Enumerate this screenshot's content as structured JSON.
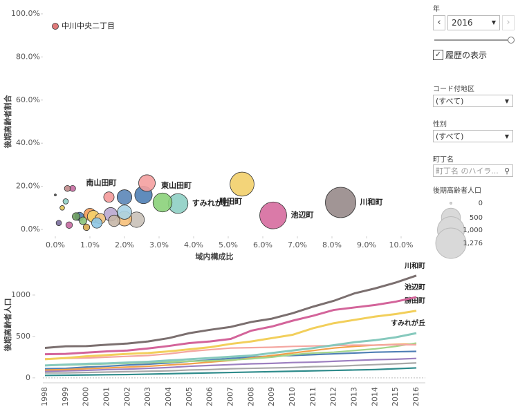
{
  "chart_data": [
    {
      "type": "scatter",
      "highlight": "中川中央二丁目",
      "highlight_color": "#e07a7a",
      "x_label": "域内構成比",
      "y_label": "後期高齢者割合",
      "xlim": [
        -0.36,
        10.7
      ],
      "ylim": [
        -3.2,
        103.2
      ],
      "xticks": [
        {
          "value": 0,
          "label": "0.0%"
        },
        {
          "value": 1,
          "label": "1.0%"
        },
        {
          "value": 2,
          "label": "2.0%"
        },
        {
          "value": 3,
          "label": "3.0%"
        },
        {
          "value": 4,
          "label": "4.0%"
        },
        {
          "value": 5,
          "label": "5.0%"
        },
        {
          "value": 6,
          "label": "6.0%"
        },
        {
          "value": 7,
          "label": "7.0%"
        },
        {
          "value": 8,
          "label": "8.0%"
        },
        {
          "value": 9,
          "label": "9.0%"
        },
        {
          "value": 10,
          "label": "10.0%"
        }
      ],
      "yticks": [
        {
          "value": 0,
          "label": "0.0%"
        },
        {
          "value": 20,
          "label": "20.0%"
        },
        {
          "value": 40,
          "label": "40.0%"
        },
        {
          "value": 60,
          "label": "60.0%"
        },
        {
          "value": 80,
          "label": "80.0%"
        },
        {
          "value": 100,
          "label": "100.0%"
        }
      ],
      "grid": false,
      "points": {
        "x": [
          8.25,
          6.3,
          5.4,
          3.55,
          3.1,
          2.65,
          2.55,
          2.0,
          2.0,
          2.0,
          2.35,
          1.55,
          1.6,
          1.3,
          1.2,
          1.0,
          0.8,
          0.6,
          0.5,
          0.35,
          0.3,
          0.2,
          0.1,
          0.4,
          0.9,
          1.1,
          0.7,
          1.7,
          0.0
        ],
        "y": [
          12.5,
          6.5,
          21,
          12,
          12.5,
          21.5,
          16,
          15,
          8,
          5,
          4.5,
          15,
          7,
          5,
          3,
          7,
          4,
          6,
          19,
          19,
          13,
          10,
          3,
          2,
          1,
          6,
          6,
          4,
          16
        ],
        "sizes": [
          1276,
          1000,
          800,
          540,
          500,
          380,
          420,
          300,
          280,
          300,
          330,
          150,
          250,
          150,
          150,
          200,
          80,
          80,
          50,
          50,
          40,
          30,
          40,
          60,
          60,
          200,
          100,
          180,
          0
        ],
        "colors": [
          "#978a8a",
          "#d66b9e",
          "#f2cf6a",
          "#8ecfc4",
          "#8bd17a",
          "#f4a0a0",
          "#4f7fb5",
          "#5b86b8",
          "#a9d3e6",
          "#f6c07a",
          "#c9c1b8",
          "#f49a9a",
          "#b9a7cf",
          "#f1c27d",
          "#8ec6e4",
          "#f29b58",
          "#8ac27a",
          "#6fa060",
          "#c66aa1",
          "#c08a8a",
          "#8ecfc4",
          "#e2c65a",
          "#7b6f9f",
          "#c66aa1",
          "#d8a94d",
          "#f4d16a",
          "#4f7fb5",
          "#c6b7a8",
          "#555555"
        ],
        "labels": [
          "川和町",
          "池辺町",
          "勝田町",
          "すみれが丘",
          "東山田町",
          "南山田町",
          null,
          null,
          null,
          null,
          null,
          null,
          null,
          null,
          null,
          null,
          null,
          null,
          null,
          null,
          null,
          null,
          null,
          null,
          null,
          null,
          null,
          null,
          null
        ]
      },
      "size_legend": {
        "title": "後期高齢者人口",
        "values": [
          0,
          500,
          {
            "value": 1000,
            "label": "1,000"
          },
          {
            "value": 1276,
            "label": "1,276"
          }
        ]
      }
    },
    {
      "type": "line",
      "y_label": "後期高齢者人口",
      "categories": [
        "1998",
        "1999",
        "2000",
        "2001",
        "2002",
        "2003",
        "2004",
        "2005",
        "2006",
        "2007",
        "2008",
        "2009",
        "2010",
        "2011",
        "2012",
        "2013",
        "2014",
        "2015",
        "2016"
      ],
      "ylim": [
        -43,
        1325
      ],
      "yticks": [
        0,
        500,
        1000
      ],
      "series": [
        {
          "name": null,
          "color": "#2e8b8b",
          "values": [
            30,
            32,
            35,
            38,
            40,
            45,
            50,
            55,
            60,
            65,
            70,
            75,
            80,
            85,
            90,
            95,
            100,
            110,
            120
          ]
        },
        {
          "name": null,
          "color": "#a8a8a8",
          "values": [
            60,
            60,
            65,
            70,
            75,
            80,
            85,
            95,
            100,
            110,
            115,
            120,
            125,
            135,
            140,
            150,
            160,
            170,
            180
          ]
        },
        {
          "name": null,
          "color": "#9c7fc0",
          "values": [
            80,
            85,
            90,
            100,
            105,
            115,
            125,
            140,
            150,
            160,
            170,
            175,
            185,
            190,
            200,
            210,
            220,
            225,
            235
          ]
        },
        {
          "name": null,
          "color": "#4f7fb5",
          "values": [
            110,
            115,
            130,
            140,
            155,
            165,
            180,
            200,
            215,
            235,
            250,
            265,
            270,
            280,
            290,
            300,
            310,
            315,
            320
          ]
        },
        {
          "name": null,
          "color": "#f2a04a",
          "values": [
            95,
            100,
            110,
            120,
            130,
            140,
            155,
            170,
            190,
            210,
            240,
            270,
            300,
            330,
            360,
            380,
            395,
            405,
            410
          ]
        },
        {
          "name": null,
          "color": "#a3d58a",
          "values": [
            150,
            155,
            160,
            170,
            175,
            185,
            190,
            200,
            205,
            215,
            230,
            250,
            280,
            300,
            310,
            330,
            350,
            380,
            420
          ]
        },
        {
          "name": null,
          "color": "#f4a6a0",
          "values": [
            230,
            235,
            240,
            250,
            260,
            270,
            290,
            320,
            340,
            360,
            365,
            370,
            380,
            385,
            390,
            395,
            395,
            400,
            400
          ]
        },
        {
          "name": "すみれが丘",
          "color": "#86c9bd",
          "values": [
            150,
            160,
            170,
            175,
            185,
            195,
            210,
            225,
            240,
            255,
            270,
            300,
            330,
            360,
            395,
            430,
            455,
            490,
            540
          ]
        },
        {
          "name": "勝田町",
          "color": "#f2cf5b",
          "values": [
            225,
            240,
            260,
            275,
            290,
            300,
            320,
            345,
            370,
            410,
            440,
            480,
            520,
            600,
            660,
            700,
            740,
            770,
            810
          ]
        },
        {
          "name": "池辺町",
          "color": "#d3649a",
          "values": [
            285,
            290,
            305,
            320,
            330,
            355,
            385,
            420,
            440,
            470,
            570,
            620,
            690,
            750,
            820,
            850,
            880,
            920,
            975
          ]
        },
        {
          "name": "川和町",
          "color": "#7b6f6f",
          "values": [
            362,
            381,
            383,
            400,
            415,
            440,
            480,
            540,
            580,
            615,
            675,
            715,
            780,
            860,
            930,
            1020,
            1080,
            1150,
            1235
          ]
        }
      ]
    }
  ],
  "controls": {
    "year_label": "年",
    "year": "2016",
    "history": "履歴の表示",
    "code_label": "コード付地区",
    "code_value": "(すべて)",
    "sex_label": "性別",
    "sex_value": "(すべて)",
    "town_label": "町丁名",
    "town_placeholder": "町丁名 のハイラ..."
  }
}
